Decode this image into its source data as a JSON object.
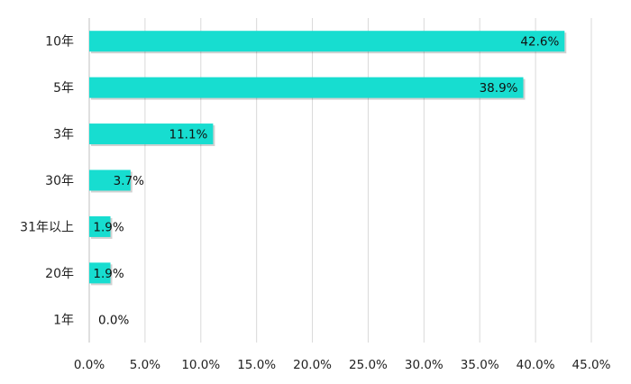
{
  "chart_data": {
    "type": "bar",
    "orientation": "horizontal",
    "categories": [
      "10年",
      "5年",
      "3年",
      "30年",
      "31年以上",
      "20年",
      "1年"
    ],
    "values": [
      42.6,
      38.9,
      11.1,
      3.7,
      1.9,
      1.9,
      0.0
    ],
    "data_labels": [
      "42.6%",
      "38.9%",
      "11.1%",
      "3.7%",
      "1.9%",
      "1.9%",
      "0.0%"
    ],
    "x_ticks": [
      "0.0%",
      "5.0%",
      "10.0%",
      "15.0%",
      "20.0%",
      "25.0%",
      "30.0%",
      "35.0%",
      "40.0%",
      "45.0%"
    ],
    "xlim": [
      0,
      45
    ],
    "title": "",
    "xlabel": "",
    "ylabel": "",
    "grid": "vertical",
    "legend": "none",
    "bar_color": "#17ddd0",
    "grid_color": "#d9d9d9"
  }
}
